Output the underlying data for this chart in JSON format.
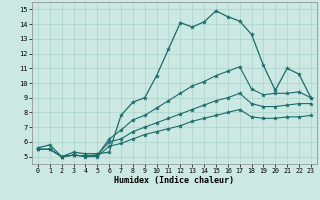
{
  "xlabel": "Humidex (Indice chaleur)",
  "xlim": [
    -0.5,
    23.5
  ],
  "ylim": [
    4.5,
    15.5
  ],
  "xticks": [
    0,
    1,
    2,
    3,
    4,
    5,
    6,
    7,
    8,
    9,
    10,
    11,
    12,
    13,
    14,
    15,
    16,
    17,
    18,
    19,
    20,
    21,
    22,
    23
  ],
  "yticks": [
    5,
    6,
    7,
    8,
    9,
    10,
    11,
    12,
    13,
    14,
    15
  ],
  "bg_color": "#cce8e2",
  "line_color": "#1a6b6b",
  "grid_color": "#aad4cc",
  "series1_x": [
    0,
    1,
    2,
    3,
    4,
    5,
    6,
    7,
    8,
    9,
    10,
    11,
    12,
    13,
    14,
    15,
    16,
    17,
    18,
    19,
    20,
    21,
    22,
    23
  ],
  "series1_y": [
    5.6,
    5.8,
    5.0,
    5.3,
    5.2,
    5.2,
    5.3,
    7.8,
    8.7,
    9.0,
    10.5,
    12.3,
    14.1,
    13.8,
    14.15,
    14.9,
    14.5,
    14.2,
    13.3,
    11.2,
    9.5,
    11.0,
    10.6,
    9.0
  ],
  "series2_x": [
    0,
    1,
    2,
    3,
    4,
    5,
    6,
    7,
    8,
    9,
    10,
    11,
    12,
    13,
    14,
    15,
    16,
    17,
    18,
    19,
    20,
    21,
    22,
    23
  ],
  "series2_y": [
    5.5,
    5.5,
    5.0,
    5.1,
    5.05,
    5.1,
    6.2,
    6.8,
    7.5,
    7.8,
    8.3,
    8.8,
    9.3,
    9.8,
    10.1,
    10.5,
    10.8,
    11.1,
    9.6,
    9.2,
    9.3,
    9.3,
    9.4,
    9.0
  ],
  "series3_x": [
    0,
    1,
    2,
    3,
    4,
    5,
    6,
    7,
    8,
    9,
    10,
    11,
    12,
    13,
    14,
    15,
    16,
    17,
    18,
    19,
    20,
    21,
    22,
    23
  ],
  "series3_y": [
    5.5,
    5.5,
    5.0,
    5.1,
    5.05,
    5.1,
    6.0,
    6.2,
    6.7,
    7.0,
    7.3,
    7.6,
    7.9,
    8.2,
    8.5,
    8.8,
    9.0,
    9.3,
    8.6,
    8.4,
    8.4,
    8.5,
    8.6,
    8.6
  ],
  "series4_x": [
    0,
    1,
    2,
    3,
    4,
    5,
    6,
    7,
    8,
    9,
    10,
    11,
    12,
    13,
    14,
    15,
    16,
    17,
    18,
    19,
    20,
    21,
    22,
    23
  ],
  "series4_y": [
    5.5,
    5.5,
    5.0,
    5.1,
    5.0,
    5.0,
    5.7,
    5.9,
    6.2,
    6.5,
    6.7,
    6.9,
    7.1,
    7.4,
    7.6,
    7.8,
    8.0,
    8.2,
    7.7,
    7.6,
    7.6,
    7.7,
    7.7,
    7.8
  ]
}
